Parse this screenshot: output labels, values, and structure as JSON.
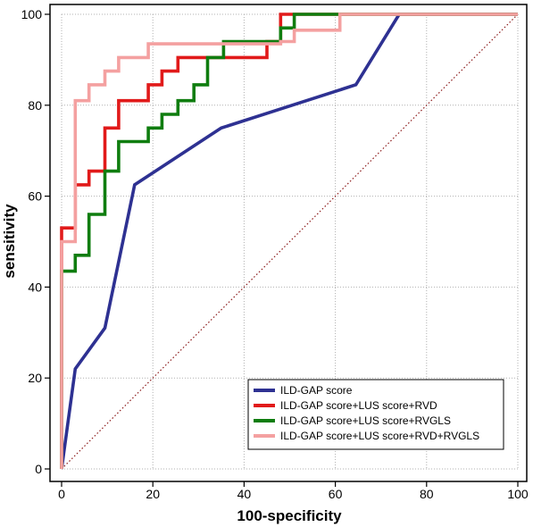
{
  "chart_data": {
    "type": "line",
    "xlabel": "100-specificity",
    "ylabel": "sensitivity",
    "xlim": [
      0,
      100
    ],
    "ylim": [
      0,
      100
    ],
    "xticks": [
      0,
      20,
      40,
      60,
      80,
      100
    ],
    "yticks": [
      0,
      20,
      40,
      60,
      80,
      100
    ],
    "grid": true,
    "legend_position": "bottom-right",
    "reference_line": {
      "style": "dotted",
      "color": "#8b1a1a",
      "from": [
        0,
        0
      ],
      "to": [
        100,
        100
      ]
    },
    "series": [
      {
        "name": "ILD-GAP score",
        "color": "#2e3192",
        "points": [
          [
            0,
            0
          ],
          [
            3,
            22
          ],
          [
            9.5,
            31
          ],
          [
            16,
            62.5
          ],
          [
            35,
            75
          ],
          [
            64.5,
            84.5
          ],
          [
            74,
            100
          ],
          [
            100,
            100
          ]
        ]
      },
      {
        "name": "ILD-GAP score+LUS score+RVD",
        "color": "#e11a1a",
        "points": [
          [
            0,
            0
          ],
          [
            0,
            53
          ],
          [
            3,
            53
          ],
          [
            3,
            62.5
          ],
          [
            6,
            62.5
          ],
          [
            6,
            65.5
          ],
          [
            9.5,
            65.5
          ],
          [
            9.5,
            75
          ],
          [
            12.5,
            75
          ],
          [
            12.5,
            81
          ],
          [
            19,
            81
          ],
          [
            19,
            84.5
          ],
          [
            22,
            84.5
          ],
          [
            22,
            87.5
          ],
          [
            25.5,
            87.5
          ],
          [
            25.5,
            90.5
          ],
          [
            45,
            90.5
          ],
          [
            45,
            94
          ],
          [
            48,
            94
          ],
          [
            48,
            100
          ],
          [
            100,
            100
          ]
        ]
      },
      {
        "name": "ILD-GAP score+LUS score+RVGLS",
        "color": "#0f7d0f",
        "points": [
          [
            0,
            0
          ],
          [
            0,
            43.5
          ],
          [
            3,
            43.5
          ],
          [
            3,
            47
          ],
          [
            6,
            47
          ],
          [
            6,
            56
          ],
          [
            9.5,
            56
          ],
          [
            9.5,
            65.5
          ],
          [
            12.5,
            65.5
          ],
          [
            12.5,
            72
          ],
          [
            19,
            72
          ],
          [
            19,
            75
          ],
          [
            22,
            75
          ],
          [
            22,
            78
          ],
          [
            25.5,
            78
          ],
          [
            25.5,
            81
          ],
          [
            29,
            81
          ],
          [
            29,
            84.5
          ],
          [
            32,
            84.5
          ],
          [
            32,
            90.5
          ],
          [
            35.5,
            90.5
          ],
          [
            35.5,
            94
          ],
          [
            48,
            94
          ],
          [
            48,
            97
          ],
          [
            51,
            97
          ],
          [
            51,
            100
          ],
          [
            100,
            100
          ]
        ]
      },
      {
        "name": "ILD-GAP score+LUS score+RVD+RVGLS",
        "color": "#f4a0a0",
        "points": [
          [
            0,
            0
          ],
          [
            0,
            50
          ],
          [
            3,
            50
          ],
          [
            3,
            81
          ],
          [
            6,
            81
          ],
          [
            6,
            84.5
          ],
          [
            9.5,
            84.5
          ],
          [
            9.5,
            87.5
          ],
          [
            12.5,
            87.5
          ],
          [
            12.5,
            90.5
          ],
          [
            19,
            90.5
          ],
          [
            19,
            93.5
          ],
          [
            48,
            93.5
          ],
          [
            48,
            94
          ],
          [
            51,
            94
          ],
          [
            51,
            96.5
          ],
          [
            61,
            96.5
          ],
          [
            61,
            100
          ],
          [
            100,
            100
          ]
        ]
      }
    ]
  }
}
